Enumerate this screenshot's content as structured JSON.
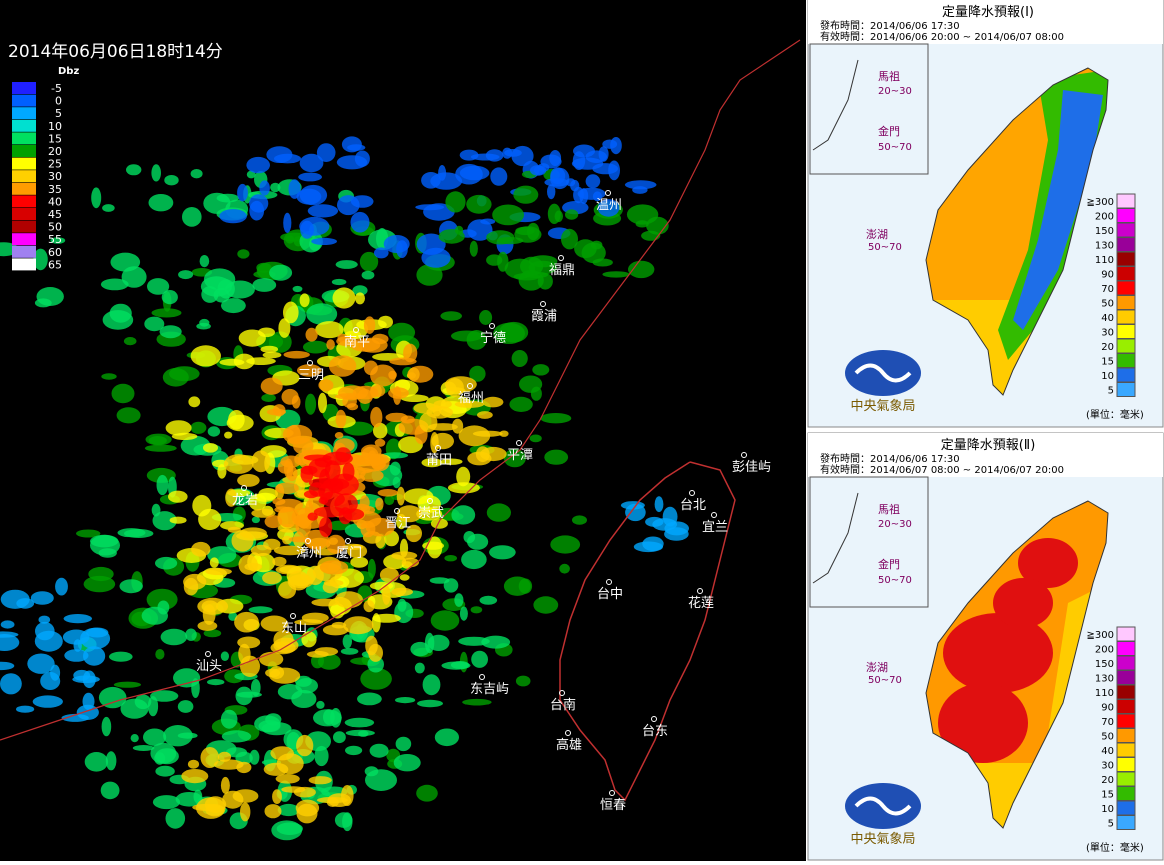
{
  "radar": {
    "timestamp": "2014年06月06日18时14分",
    "legend_unit": "Dbz",
    "legend": [
      {
        "label": "-5",
        "color": "#2020ff"
      },
      {
        "label": "0",
        "color": "#0060ff"
      },
      {
        "label": "5",
        "color": "#00a8ff"
      },
      {
        "label": "10",
        "color": "#00e0d0"
      },
      {
        "label": "15",
        "color": "#00e060"
      },
      {
        "label": "20",
        "color": "#00a000"
      },
      {
        "label": "25",
        "color": "#ffff00"
      },
      {
        "label": "30",
        "color": "#ffd000"
      },
      {
        "label": "35",
        "color": "#ff9c00"
      },
      {
        "label": "40",
        "color": "#ff0000"
      },
      {
        "label": "45",
        "color": "#d80000"
      },
      {
        "label": "50",
        "color": "#b00000"
      },
      {
        "label": "55",
        "color": "#ff00ff"
      },
      {
        "label": "60",
        "color": "#a080f0"
      },
      {
        "label": "65",
        "color": "#ffffff"
      }
    ],
    "cities": [
      "温州",
      "福鼎",
      "霞浦",
      "宁德",
      "南平",
      "三明",
      "福州",
      "平潭",
      "莆田",
      "龙岩",
      "晋江",
      "崇武",
      "漳州",
      "厦门",
      "东山",
      "汕头",
      "东吉屿",
      "彭佳屿",
      "台北",
      "宜兰",
      "台中",
      "花莲",
      "台南",
      "台东",
      "高雄",
      "恒春"
    ]
  },
  "forecasts": [
    {
      "title": "定量降水預報(Ⅰ)",
      "issued": "發布時間：2014/06/06 17:30",
      "valid": "有效時間：2014/06/06 20:00 ~ 2014/06/07 08:00",
      "islands": [
        {
          "name": "馬祖",
          "range": "20~30"
        },
        {
          "name": "金門",
          "range": "50~70"
        },
        {
          "name": "澎湖",
          "range": "50~70"
        }
      ],
      "legend": [
        {
          "label": "≧300",
          "color": "#ffc8ff"
        },
        {
          "label": "200",
          "color": "#ff00ff"
        },
        {
          "label": "150",
          "color": "#cc00cc"
        },
        {
          "label": "130",
          "color": "#990099"
        },
        {
          "label": "110",
          "color": "#990000"
        },
        {
          "label": "90",
          "color": "#cc0000"
        },
        {
          "label": "70",
          "color": "#ff0000"
        },
        {
          "label": "50",
          "color": "#ff9900"
        },
        {
          "label": "40",
          "color": "#ffcc00"
        },
        {
          "label": "30",
          "color": "#ffff00"
        },
        {
          "label": "20",
          "color": "#99ee00"
        },
        {
          "label": "15",
          "color": "#33bb00"
        },
        {
          "label": "10",
          "color": "#1e6ee8"
        },
        {
          "label": "5",
          "color": "#3aa8ff"
        }
      ],
      "unit": "(單位：毫米)",
      "agency": "中央氣象局"
    },
    {
      "title": "定量降水預報(Ⅱ)",
      "issued": "發布時間：2014/06/06 17:30",
      "valid": "有效時間：2014/06/07 08:00 ~ 2014/06/07 20:00",
      "islands": [
        {
          "name": "馬祖",
          "range": "20~30"
        },
        {
          "name": "金門",
          "range": "50~70"
        },
        {
          "name": "澎湖",
          "range": "50~70"
        }
      ],
      "legend": [
        {
          "label": "≧300",
          "color": "#ffc8ff"
        },
        {
          "label": "200",
          "color": "#ff00ff"
        },
        {
          "label": "150",
          "color": "#cc00cc"
        },
        {
          "label": "130",
          "color": "#990099"
        },
        {
          "label": "110",
          "color": "#990000"
        },
        {
          "label": "90",
          "color": "#cc0000"
        },
        {
          "label": "70",
          "color": "#ff0000"
        },
        {
          "label": "50",
          "color": "#ff9900"
        },
        {
          "label": "40",
          "color": "#ffcc00"
        },
        {
          "label": "30",
          "color": "#ffff00"
        },
        {
          "label": "20",
          "color": "#99ee00"
        },
        {
          "label": "15",
          "color": "#33bb00"
        },
        {
          "label": "10",
          "color": "#1e6ee8"
        },
        {
          "label": "5",
          "color": "#3aa8ff"
        }
      ],
      "unit": "(單位：毫米)",
      "agency": "中央氣象局"
    }
  ]
}
